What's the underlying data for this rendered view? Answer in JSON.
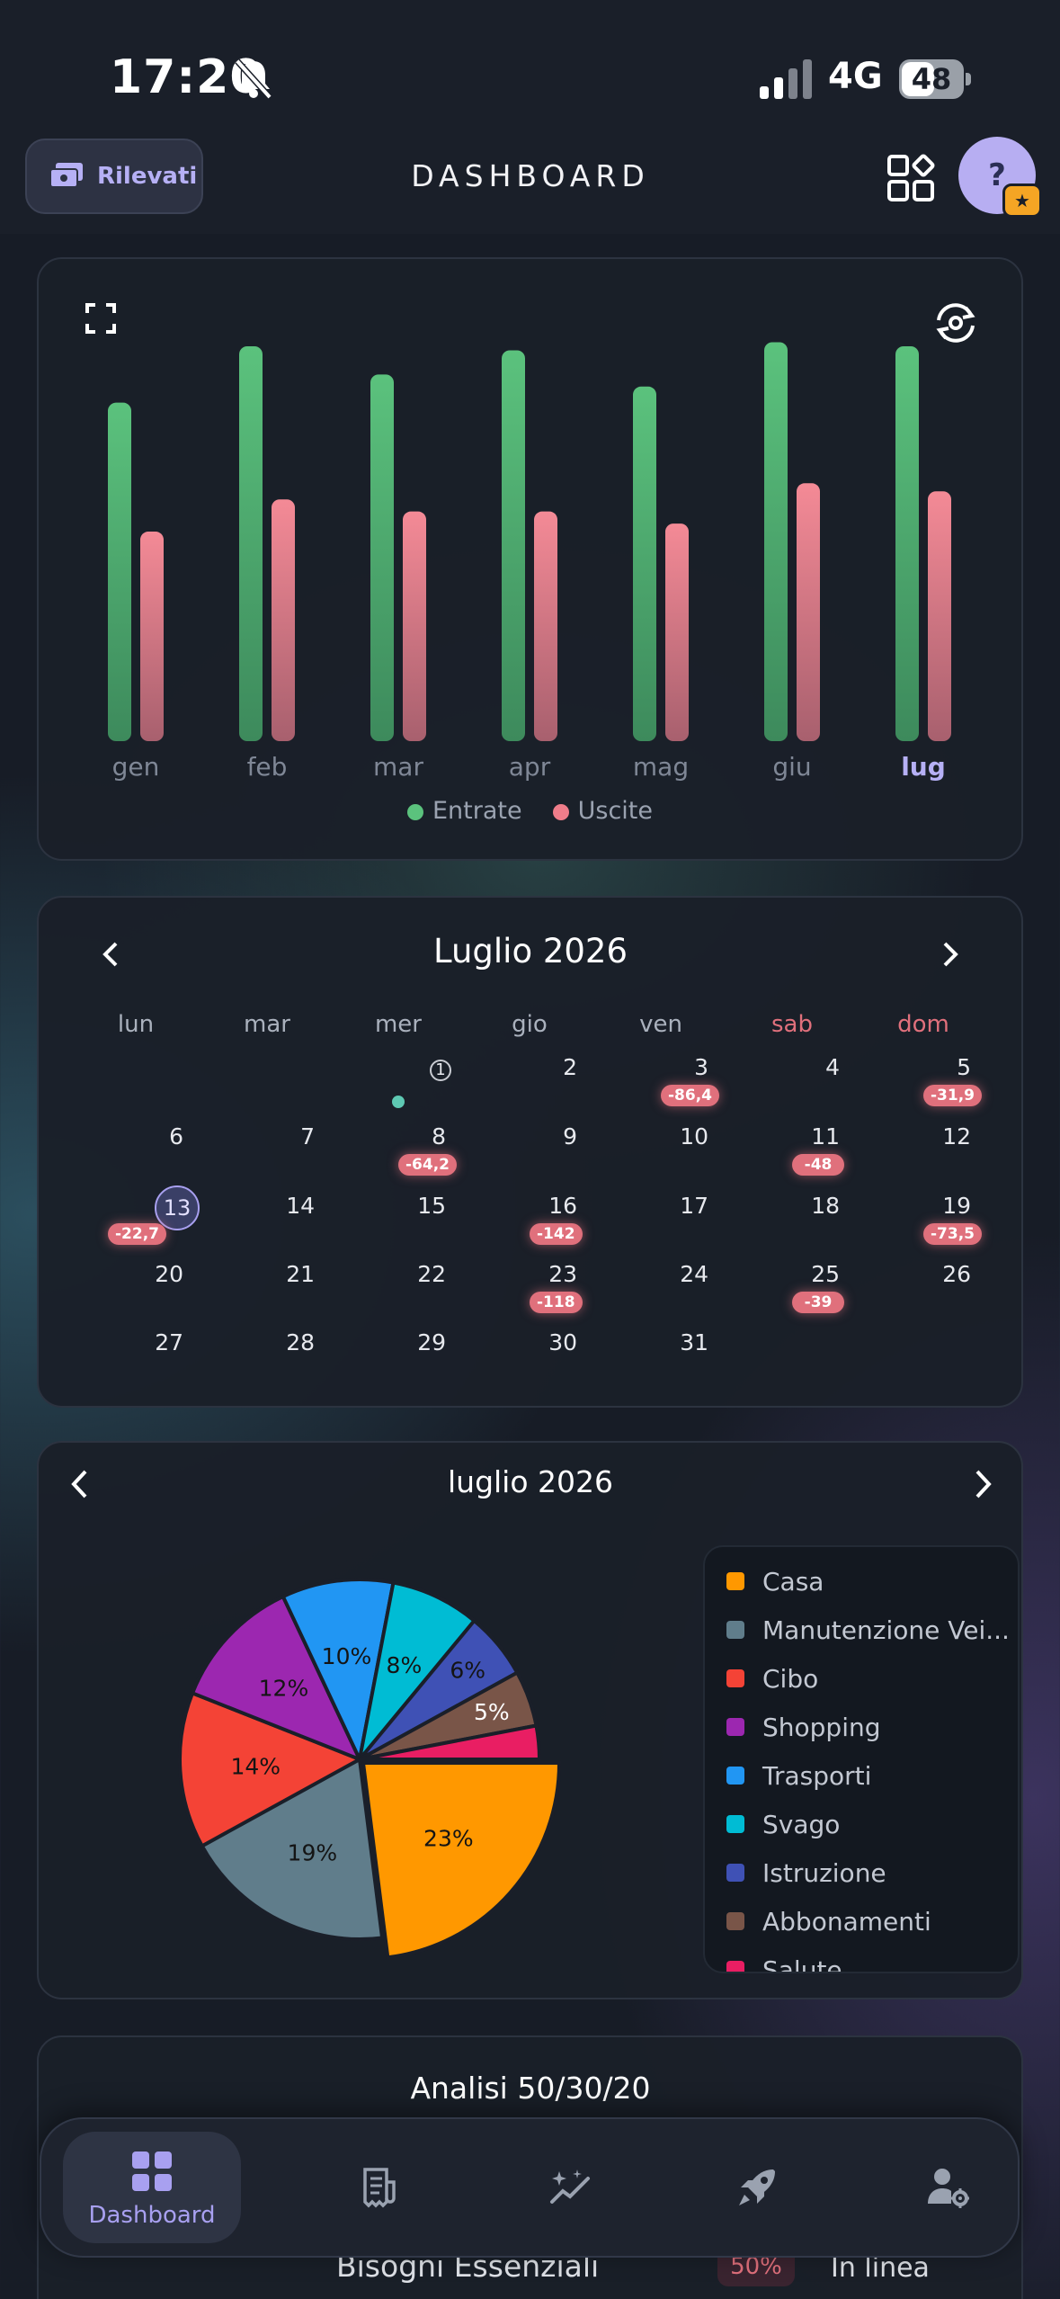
{
  "status_bar": {
    "time": "17:20",
    "network": "4G",
    "battery": "48"
  },
  "header": {
    "rilevati_label": "Rilevati",
    "title": "DASHBOARD",
    "avatar_label": "?"
  },
  "bar_chart": {
    "chart_data": {
      "type": "bar",
      "categories": [
        "gen",
        "feb",
        "mar",
        "apr",
        "mag",
        "giu",
        "lug"
      ],
      "series": [
        {
          "name": "Entrate",
          "color": "#5bc27d",
          "values": [
            84,
            98,
            91,
            97,
            88,
            99,
            98
          ]
        },
        {
          "name": "Uscite",
          "color": "#ef7d8a",
          "values": [
            52,
            60,
            57,
            57,
            54,
            64,
            62
          ]
        }
      ],
      "highlight_category": "lug",
      "legend_position": "bottom"
    }
  },
  "calendar": {
    "month_title": "Luglio 2026",
    "weekdays": [
      "lun",
      "mar",
      "mer",
      "gio",
      "ven",
      "sab",
      "dom"
    ],
    "today": "13",
    "first_day_label": "1",
    "weeks": [
      [
        "",
        "",
        "1",
        "2",
        "3",
        "4",
        "5"
      ],
      [
        "6",
        "7",
        "8",
        "9",
        "10",
        "11",
        "12"
      ],
      [
        "13",
        "14",
        "15",
        "16",
        "17",
        "18",
        "19"
      ],
      [
        "20",
        "21",
        "22",
        "23",
        "24",
        "25",
        "26"
      ],
      [
        "27",
        "28",
        "29",
        "30",
        "31",
        "",
        ""
      ]
    ],
    "badges": [
      {
        "day": "3",
        "value": "-86,4"
      },
      {
        "day": "5",
        "value": "-31,9"
      },
      {
        "day": "8",
        "value": "-64,2"
      },
      {
        "day": "11",
        "value": "-48"
      },
      {
        "day": "13",
        "value": "-22,7"
      },
      {
        "day": "16",
        "value": "-142"
      },
      {
        "day": "19",
        "value": "-73,5"
      },
      {
        "day": "23",
        "value": "-118"
      },
      {
        "day": "25",
        "value": "-39"
      }
    ]
  },
  "pie_section": {
    "title": "luglio 2026",
    "chart_data": {
      "type": "pie",
      "slices": [
        {
          "label": "Casa",
          "value": 23,
          "color": "#ff9800",
          "display": "23%"
        },
        {
          "label": "Manutenzione Vei...",
          "value": 19,
          "color": "#607d8b",
          "display": "19%"
        },
        {
          "label": "Cibo",
          "value": 14,
          "color": "#f44336",
          "display": "14%"
        },
        {
          "label": "Shopping",
          "value": 12,
          "color": "#9c27b0",
          "display": "12%"
        },
        {
          "label": "Trasporti",
          "value": 10,
          "color": "#2196f3",
          "display": "10%"
        },
        {
          "label": "Svago",
          "value": 8,
          "color": "#00bcd4",
          "display": "8%"
        },
        {
          "label": "Istruzione",
          "value": 6,
          "color": "#3f51b5",
          "display": "6%"
        },
        {
          "label": "Abbonamenti",
          "value": 5,
          "color": "#795548",
          "display": "5%"
        },
        {
          "label": "Salute",
          "value": 3,
          "color": "#e91e63",
          "display": ""
        }
      ]
    }
  },
  "analisi": {
    "title": "Analisi 50/30/20",
    "row_label": "Bisogni Essenziali",
    "row_pct": "50%",
    "row_status": "In linea"
  },
  "bottom_nav": {
    "items": [
      {
        "label": "Dashboard",
        "icon": "dashboard-grid-icon",
        "active": true
      },
      {
        "label": "",
        "icon": "receipt-icon",
        "active": false
      },
      {
        "label": "",
        "icon": "trend-sparkle-icon",
        "active": false
      },
      {
        "label": "",
        "icon": "rocket-icon",
        "active": false
      },
      {
        "label": "",
        "icon": "user-settings-icon",
        "active": false
      }
    ]
  },
  "colors": {
    "accent": "#a8a0f0",
    "income": "#5bc27d",
    "expense": "#ef7d8a",
    "weekend": "#e0707c"
  }
}
